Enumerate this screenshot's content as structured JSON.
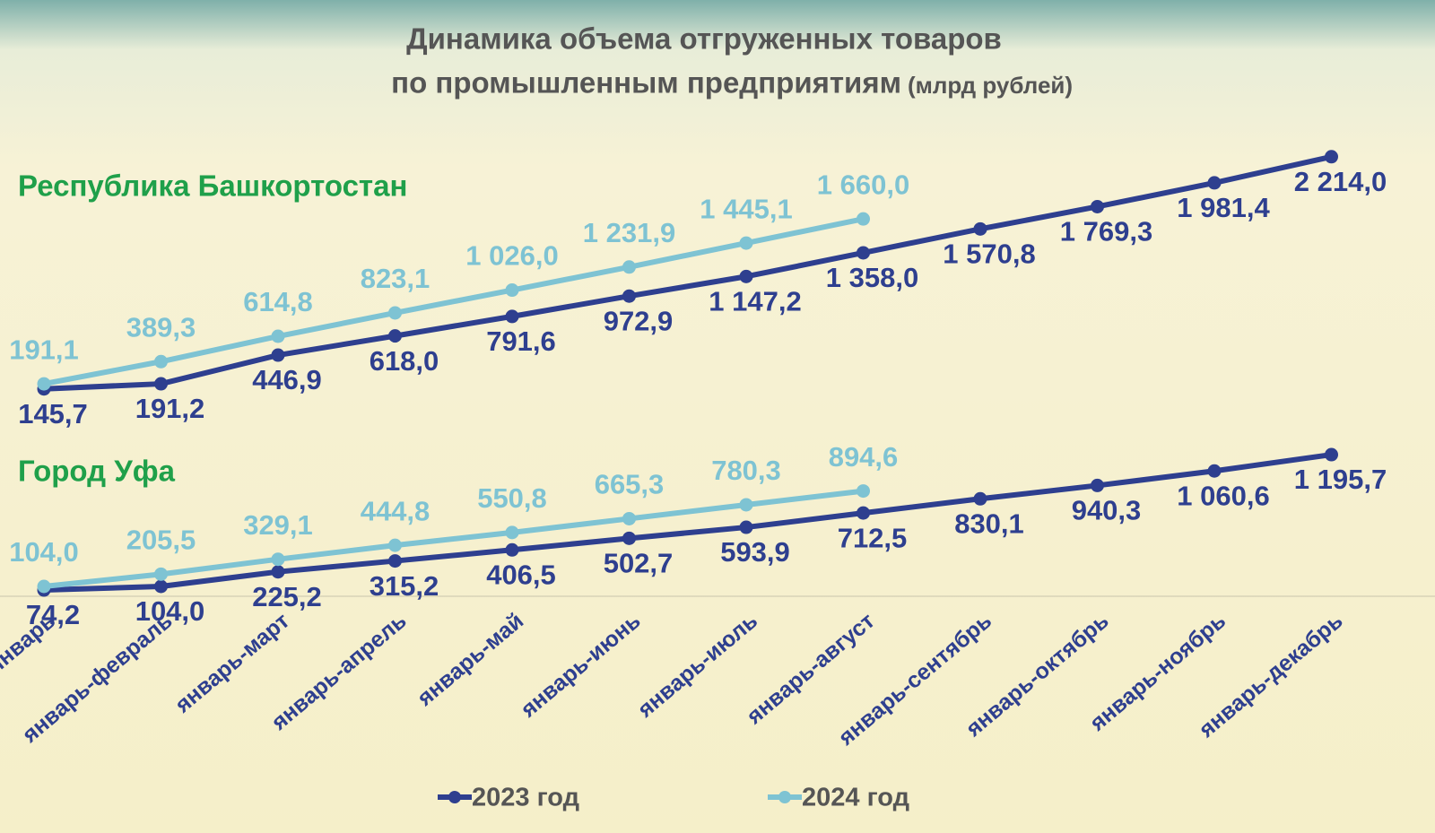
{
  "chart_data": [
    {
      "type": "line",
      "title": "Динамика объема отгруженных товаров",
      "title_line2": "по промышленным предприятиям",
      "unit": "(млрд рублей)",
      "subtitle": "Республика Башкортостан",
      "categories": [
        "январь",
        "январь-февраль",
        "январь-март",
        "январь-апрель",
        "январь-май",
        "январь-июнь",
        "январь-июль",
        "январь-август",
        "январь-сентябрь",
        "январь-октябрь",
        "январь-ноябрь",
        "январь-декабрь"
      ],
      "series": [
        {
          "name": "2023 год",
          "color": "#2e3f8f",
          "values": [
            145.7,
            191.2,
            446.9,
            618.0,
            791.6,
            972.9,
            1147.2,
            1358.0,
            1570.8,
            1769.3,
            1981.4,
            2214.0
          ],
          "value_labels": [
            "145,7",
            "191,2",
            "446,9",
            "618,0",
            "791,6",
            "972,9",
            "1 147,2",
            "1 358,0",
            "1 570,8",
            "1 769,3",
            "1 981,4",
            "2 214,0"
          ]
        },
        {
          "name": "2024 год",
          "color": "#7ec3d3",
          "values": [
            191.1,
            389.3,
            614.8,
            823.1,
            1026.0,
            1231.9,
            1445.1,
            1660.0,
            null,
            null,
            null,
            null
          ],
          "value_labels": [
            "191,1",
            "389,3",
            "614,8",
            "823,1",
            "1 026,0",
            "1 231,9",
            "1 445,1",
            "1 660,0",
            null,
            null,
            null,
            null
          ]
        }
      ]
    },
    {
      "type": "line",
      "subtitle": "Город Уфа",
      "series": [
        {
          "color": "#2e3f8f",
          "values": [
            74.2,
            104.0,
            225.2,
            315.2,
            406.5,
            502.7,
            593.9,
            712.5,
            830.1,
            940.3,
            1060.6,
            1195.7
          ],
          "value_labels": [
            "74,2",
            "104,0",
            "225,2",
            "315,2",
            "406,5",
            "502,7",
            "593,9",
            "712,5",
            "830,1",
            "940,3",
            "1 060,6",
            "1 195,7"
          ]
        },
        {
          "color": "#7ec3d3",
          "values": [
            104.0,
            205.5,
            329.1,
            444.8,
            550.8,
            665.3,
            780.3,
            894.6,
            null,
            null,
            null,
            null
          ],
          "value_labels": [
            "104,0",
            "205,5",
            "329,1",
            "444,8",
            "550,8",
            "665,3",
            "780,3",
            "894,6",
            null,
            null,
            null,
            null
          ]
        }
      ]
    }
  ]
}
